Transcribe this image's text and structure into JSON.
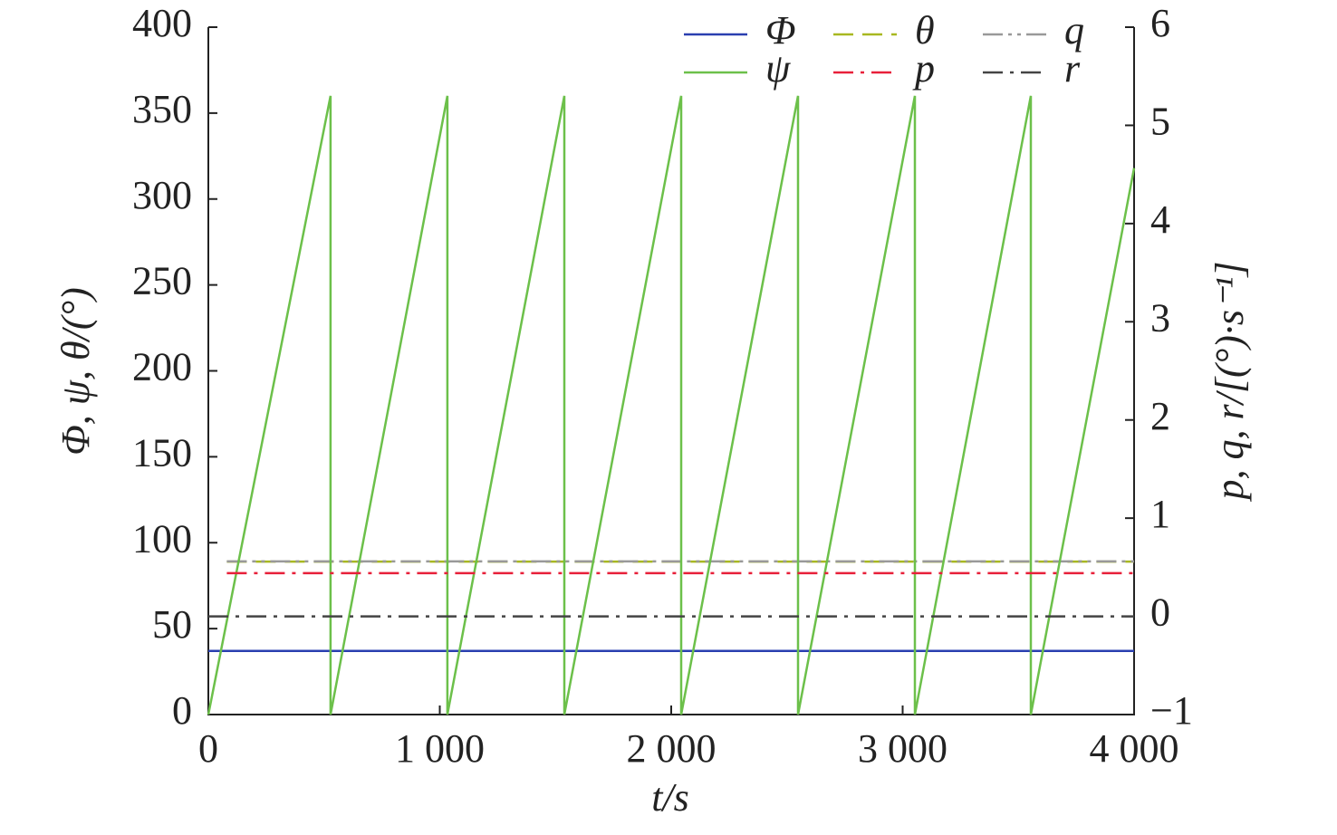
{
  "chart_data": {
    "type": "line",
    "xlabel": "t/s",
    "ylabel": "Φ, ψ, θ/(°)",
    "y2label": "p, q, r/[(°)·s⁻¹]",
    "xlim": [
      0,
      4000
    ],
    "xticks": [
      0,
      {
        "value": 1000,
        "label": "1 000"
      },
      {
        "value": 2000,
        "label": "2 000"
      },
      {
        "value": 3000,
        "label": "3 000"
      },
      {
        "value": 4000,
        "label": "4 000"
      }
    ],
    "ylim": [
      0,
      400
    ],
    "yticks": [
      0,
      50,
      100,
      150,
      200,
      250,
      300,
      350,
      400
    ],
    "y2lim": [
      -1,
      6
    ],
    "y2ticks": [
      {
        "value": -1,
        "label": "−1"
      },
      0,
      1,
      2,
      3,
      4,
      5,
      6
    ],
    "legend": "upper right",
    "series": [
      {
        "name": "Φ",
        "color": "#2a3fb0",
        "dash": "solid",
        "x": [
          0,
          4000
        ],
        "values": [
          37,
          37
        ]
      },
      {
        "name": "θ",
        "color": "#a8b820",
        "dash": "dashed",
        "x": [
          80,
          4000
        ],
        "values": [
          89,
          89
        ]
      },
      {
        "name": "q",
        "color": "#999999",
        "dash": "dashdotdot",
        "axis": "y2",
        "x": [
          80,
          4000
        ],
        "values": [
          0.56,
          0.56
        ]
      },
      {
        "name": "ψ",
        "color": "#6cc04a",
        "dash": "solid",
        "x": [
          0,
          528,
          528,
          1033,
          1033,
          1538,
          1538,
          2043,
          2043,
          2548,
          2548,
          3053,
          3053,
          3554,
          3554,
          4000
        ],
        "values": [
          0,
          360,
          0,
          360,
          0,
          360,
          0,
          360,
          0,
          360,
          0,
          360,
          0,
          360,
          0,
          318
        ]
      },
      {
        "name": "p",
        "color": "#e8203a",
        "dash": "dashdot",
        "axis": "y2",
        "x": [
          80,
          4000
        ],
        "values": [
          0.44,
          0.44
        ]
      },
      {
        "name": "r",
        "color": "#444444",
        "dash": "dashdot",
        "axis": "y2",
        "x": [
          0,
          4000
        ],
        "values": [
          0,
          0
        ]
      }
    ]
  }
}
